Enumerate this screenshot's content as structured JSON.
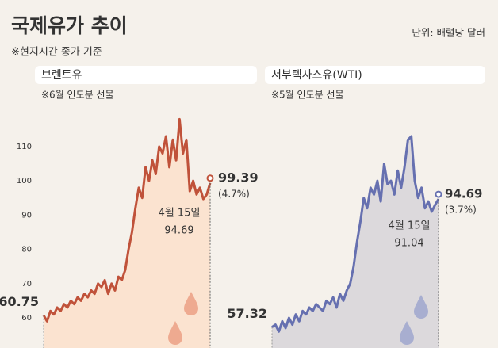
{
  "header": {
    "title": "국제유가 추이",
    "subtitle": "※현지시간 종가 기준",
    "unit": "단위: 배럴당 달러"
  },
  "chart_data": [
    {
      "type": "line",
      "title": "브렌트유",
      "note": "※6월 인도분 선물",
      "series": [
        {
          "name": "브렌트유",
          "color": "#c0523a",
          "fill": "#fbe3d0",
          "values": [
            60.75,
            59,
            62,
            61,
            63,
            62,
            64,
            63,
            65,
            64,
            66,
            65,
            67,
            66,
            68,
            67,
            70,
            69,
            71,
            67,
            70,
            68,
            72,
            71,
            74,
            80,
            85,
            92,
            98,
            95,
            104,
            100,
            106,
            102,
            110,
            108,
            113,
            104,
            112,
            106,
            118,
            108,
            112,
            97,
            100,
            96,
            98,
            94.69,
            96,
            99.39
          ]
        }
      ],
      "marker_label": "4월 15일",
      "change_label": "(4.7%)",
      "ylim": [
        51.2,
        120.4
      ],
      "yticks": [
        60,
        70,
        80,
        90,
        100,
        110
      ]
    },
    {
      "type": "line",
      "title": "서부텍사스유(WTI)",
      "note": "※5월 인도분 선물",
      "series": [
        {
          "name": "서부텍사스유(WTI)",
          "color": "#6670b0",
          "fill": "#dcd9dc",
          "values": [
            57.32,
            58,
            56,
            59,
            57,
            60,
            58,
            61,
            59,
            62,
            61,
            63,
            62,
            64,
            63,
            62,
            65,
            64,
            66,
            63,
            67,
            65,
            68,
            70,
            75,
            82,
            88,
            95,
            92,
            98,
            96,
            100,
            94,
            105,
            99,
            100,
            96,
            103,
            98,
            104,
            112,
            113,
            100,
            95,
            98,
            92,
            94,
            91.04,
            93,
            94.69
          ]
        }
      ],
      "marker_label": "4월 15일",
      "change_label": "(3.7%)",
      "ylim": [
        51.2,
        120.4
      ]
    }
  ]
}
